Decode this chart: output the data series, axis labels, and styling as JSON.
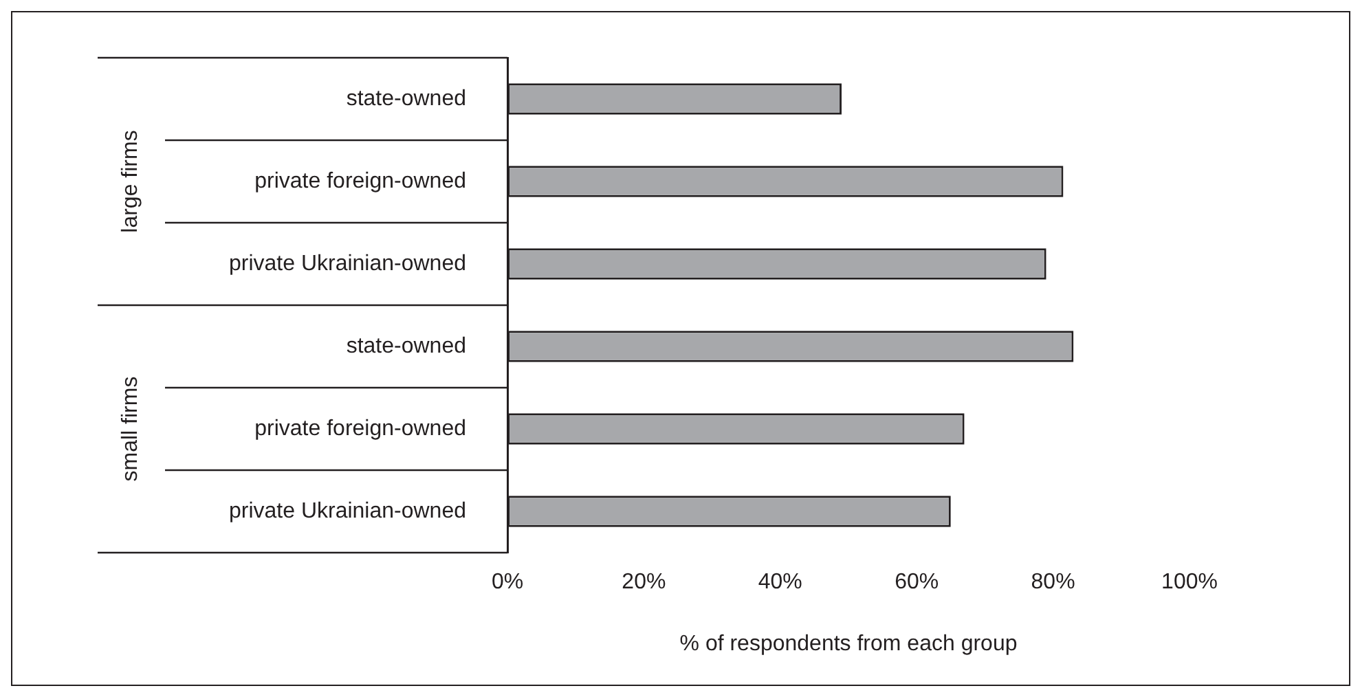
{
  "chart_data": {
    "type": "bar",
    "orientation": "horizontal",
    "xlabel": "% of respondents from each group",
    "categories": [
      "state-owned",
      "private foreign-owned",
      "private Ukrainian-owned",
      "state-owned",
      "private foreign-owned",
      "private Ukrainian-owned"
    ],
    "values": [
      49,
      81.5,
      79,
      83,
      67,
      65
    ],
    "color": "#a7a8ab",
    "xlim": [
      0,
      100
    ],
    "xticks": [
      {
        "value": 0,
        "label": "0%"
      },
      {
        "value": 20,
        "label": "20%"
      },
      {
        "value": 40,
        "label": "40%"
      },
      {
        "value": 60,
        "label": "60%"
      },
      {
        "value": 80,
        "label": "80%"
      },
      {
        "value": 100,
        "label": "100%"
      }
    ],
    "annotations": [
      "large firms",
      "small firms"
    ],
    "grid": false,
    "legend": false
  }
}
